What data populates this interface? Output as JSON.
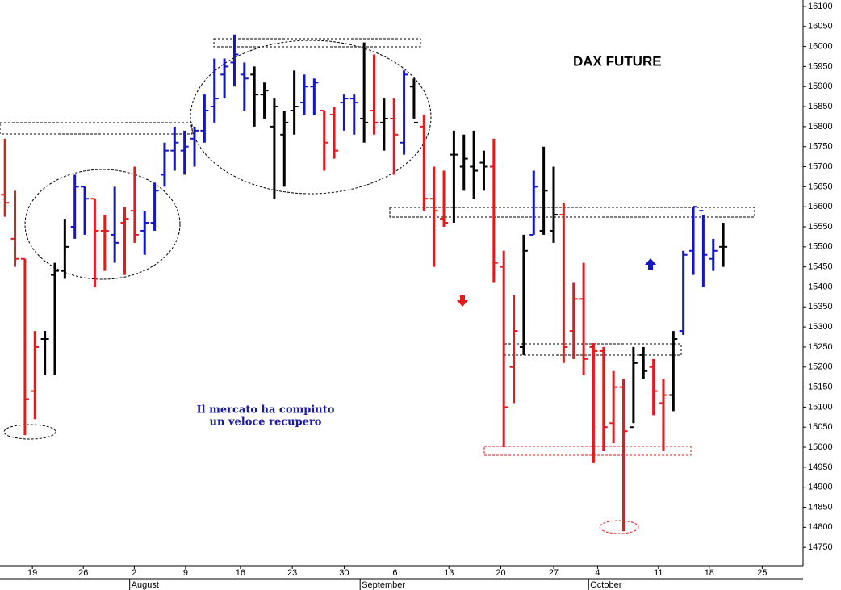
{
  "chart_data": {
    "type": "ohlc",
    "title": "DAX FUTURE",
    "annotation_lines": [
      "Il mercato ha compiuto",
      "un veloce recupero"
    ],
    "x": [
      0,
      1,
      2,
      3,
      4,
      5,
      6,
      7,
      8,
      9,
      10,
      11,
      12,
      13,
      14,
      15,
      16,
      17,
      18,
      19,
      20,
      21,
      22,
      23,
      24,
      25,
      26,
      27,
      28,
      29,
      30,
      31,
      32,
      33,
      34,
      35,
      36,
      37,
      38,
      39,
      40,
      41,
      42,
      43,
      44,
      45,
      46,
      47,
      48,
      49,
      50,
      51,
      52,
      53,
      54,
      55,
      56,
      57,
      58,
      59,
      60,
      61,
      62,
      63,
      64,
      65,
      66,
      67,
      68,
      69,
      70,
      71,
      72
    ],
    "open": [
      15630,
      15520,
      15470,
      15140,
      15270,
      15430,
      15440,
      15550,
      15650,
      15620,
      15540,
      15530,
      15560,
      15590,
      15540,
      15560,
      15680,
      15740,
      15740,
      15770,
      15790,
      15850,
      15930,
      15960,
      15930,
      15930,
      15880,
      15800,
      15780,
      15840,
      15860,
      15900,
      15840,
      15830,
      15860,
      15870,
      15820,
      15840,
      15810,
      15820,
      15760,
      15900,
      15800,
      15620,
      15570,
      15730,
      15700,
      15700,
      15710,
      15700,
      15450,
      15200,
      15250,
      15530,
      15540,
      15540,
      15580,
      15290,
      15370,
      15250,
      15240,
      15060,
      15150,
      15050,
      15230,
      15200,
      15110,
      15130,
      15290,
      15490,
      15590,
      15470,
      15500
    ],
    "high": [
      15770,
      15640,
      15470,
      15290,
      15290,
      15460,
      15570,
      15680,
      15650,
      15620,
      15580,
      15650,
      15600,
      15700,
      15590,
      15660,
      15760,
      15800,
      15790,
      15800,
      15880,
      15970,
      15970,
      16030,
      15960,
      15950,
      15910,
      15870,
      15840,
      15940,
      15930,
      15920,
      15840,
      15850,
      15880,
      15880,
      16010,
      15980,
      15870,
      15870,
      15940,
      15920,
      15830,
      15700,
      15690,
      15790,
      15780,
      15790,
      15740,
      15770,
      15490,
      15380,
      15530,
      15690,
      15750,
      15700,
      15610,
      15410,
      15460,
      15260,
      15250,
      15190,
      15170,
      15250,
      15250,
      15220,
      15170,
      15290,
      15490,
      15600,
      15580,
      15520,
      15560
    ],
    "low": [
      15575,
      15450,
      15030,
      15070,
      15180,
      15180,
      15420,
      15520,
      15530,
      15400,
      15440,
      15460,
      15430,
      15510,
      15480,
      15540,
      15650,
      15690,
      15680,
      15700,
      15760,
      15810,
      15870,
      15900,
      15840,
      15800,
      15820,
      15620,
      15650,
      15780,
      15830,
      15830,
      15690,
      15720,
      15790,
      15780,
      15760,
      15780,
      15740,
      15680,
      15730,
      15820,
      15590,
      15450,
      15550,
      15560,
      15640,
      15620,
      15640,
      15410,
      15000,
      15110,
      15230,
      15530,
      15530,
      15510,
      15210,
      15220,
      15180,
      14960,
      14990,
      15010,
      14790,
      15060,
      15170,
      15080,
      14990,
      15090,
      15280,
      15430,
      15400,
      15440,
      15450
    ],
    "close": [
      15610,
      15470,
      15120,
      15250,
      15270,
      15440,
      15500,
      15650,
      15620,
      15540,
      15540,
      15510,
      15570,
      15530,
      15560,
      15640,
      15740,
      15760,
      15750,
      15790,
      15840,
      15870,
      15950,
      15980,
      15920,
      15880,
      15890,
      15850,
      15810,
      15850,
      15900,
      15910,
      15760,
      15740,
      15870,
      15860,
      15810,
      15810,
      15820,
      15780,
      15930,
      15810,
      15620,
      15590,
      15560,
      15730,
      15720,
      15690,
      15700,
      15460,
      15100,
      15290,
      15490,
      15650,
      15640,
      15580,
      15250,
      15370,
      15220,
      15240,
      15050,
      15150,
      15040,
      15210,
      15190,
      15140,
      15130,
      15270,
      15480,
      15600,
      15480,
      15490,
      15500
    ],
    "colors": [
      "#e8191b",
      "#e8191b",
      "#e8191b",
      "#e8191b",
      "#000000",
      "#000000",
      "#000000",
      "#1414c8",
      "#1414c8",
      "#e8191b",
      "#e8191b",
      "#1414c8",
      "#e8191b",
      "#e8191b",
      "#1414c8",
      "#1414c8",
      "#1414c8",
      "#1414c8",
      "#1414c8",
      "#1414c8",
      "#1414c8",
      "#1414c8",
      "#1414c8",
      "#1414c8",
      "#1414c8",
      "#000000",
      "#000000",
      "#000000",
      "#000000",
      "#000000",
      "#1414c8",
      "#1414c8",
      "#e8191b",
      "#e8191b",
      "#1414c8",
      "#1414c8",
      "#000000",
      "#e8191b",
      "#000000",
      "#e8191b",
      "#1414c8",
      "#000000",
      "#e8191b",
      "#e8191b",
      "#e8191b",
      "#000000",
      "#000000",
      "#000000",
      "#000000",
      "#e8191b",
      "#e8191b",
      "#e8191b",
      "#000000",
      "#1414c8",
      "#000000",
      "#000000",
      "#e8191b",
      "#e8191b",
      "#e8191b",
      "#e8191b",
      "#e8191b",
      "#e8191b",
      "#e8191b",
      "#000000",
      "#000000",
      "#e8191b",
      "#e8191b",
      "#000000",
      "#1414c8",
      "#1414c8",
      "#1414c8",
      "#1414c8",
      "#000000"
    ],
    "xlim": [
      -0.5,
      80
    ],
    "xticks": [
      {
        "value": 2.75,
        "label": "19"
      },
      {
        "value": 7.85,
        "label": "26"
      },
      {
        "value": 12.96,
        "label": "2"
      },
      {
        "value": 18.1,
        "label": "9"
      },
      {
        "value": 23.6,
        "label": "16"
      },
      {
        "value": 28.8,
        "label": "23"
      },
      {
        "value": 34,
        "label": "30"
      },
      {
        "value": 39.1,
        "label": "6"
      },
      {
        "value": 44.5,
        "label": "13"
      },
      {
        "value": 49.7,
        "label": "20"
      },
      {
        "value": 55,
        "label": "27"
      },
      {
        "value": 59.4,
        "label": "4"
      },
      {
        "value": 65.5,
        "label": "11"
      },
      {
        "value": 70.6,
        "label": "18"
      },
      {
        "value": 75.9,
        "label": "25"
      }
    ],
    "month_labels": [
      {
        "value": 12.5,
        "label": "August"
      },
      {
        "value": 35.6,
        "label": "September"
      },
      {
        "value": 58.5,
        "label": "October"
      }
    ],
    "ylim": [
      14704,
      16116
    ],
    "yticks": [
      14750,
      14800,
      14850,
      14900,
      14950,
      15000,
      15050,
      15100,
      15150,
      15200,
      15250,
      15300,
      15350,
      15400,
      15450,
      15500,
      15550,
      15600,
      15650,
      15700,
      15750,
      15800,
      15850,
      15900,
      15950,
      16000,
      16050,
      16100
    ],
    "grid": false
  }
}
